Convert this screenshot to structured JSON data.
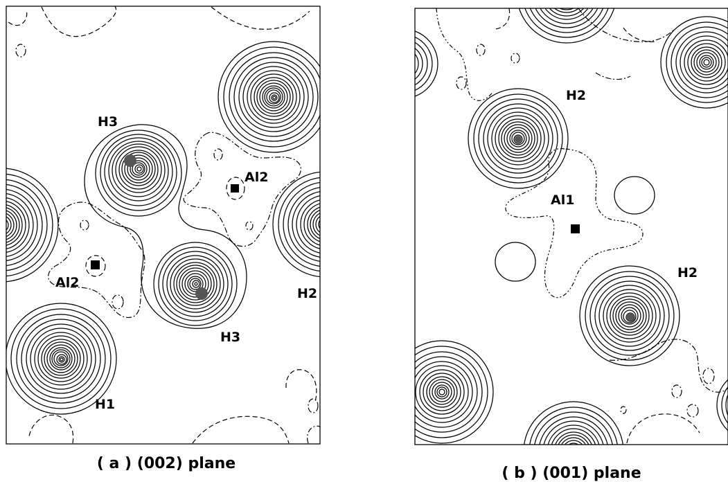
{
  "panels": [
    {
      "id": "a",
      "caption": "( a )  (002) plane",
      "labels": {
        "h3_top": "H3",
        "al2_right": "Al2",
        "al2_left": "Al2",
        "h2": "H2",
        "h3_bottom": "H3",
        "h1": "H1"
      }
    },
    {
      "id": "b",
      "caption": "( b ) (001) plane",
      "labels": {
        "h2_top": "H2",
        "al1": "Al1",
        "h2_right": "H2"
      }
    }
  ]
}
